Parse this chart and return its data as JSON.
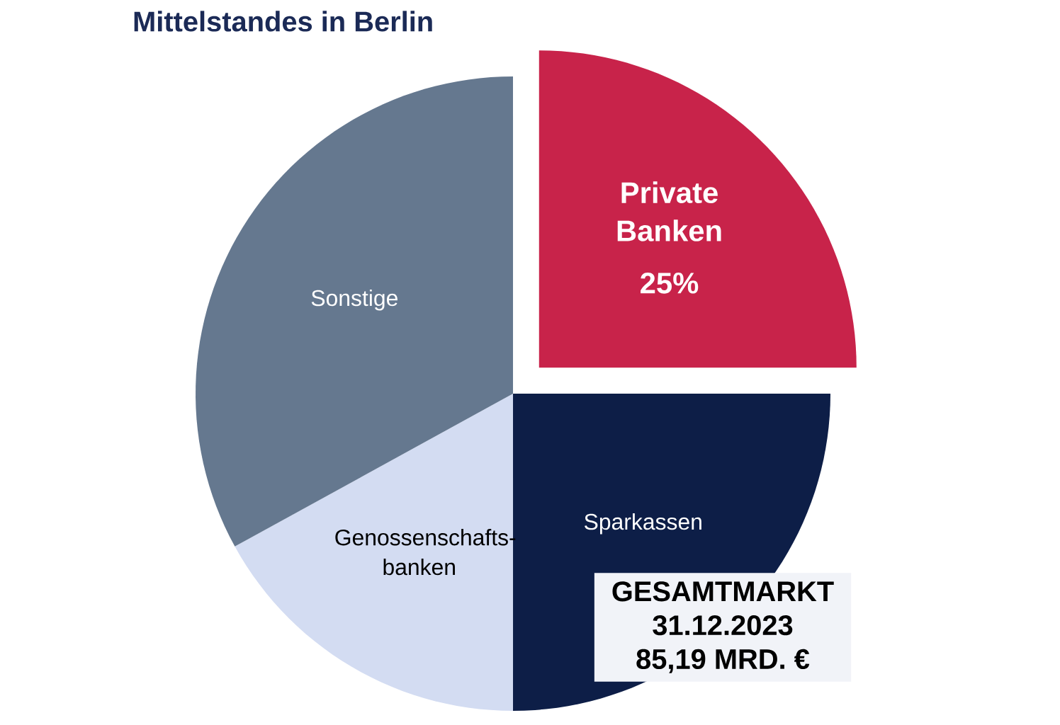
{
  "chart_data": {
    "type": "pie",
    "title": "Mittelstandes in Berlin",
    "categories": [
      "Private Banken",
      "Sparkassen",
      "Genossenschafts-banken",
      "Sonstige"
    ],
    "values": [
      25,
      25,
      17,
      33
    ],
    "colors": [
      "#c8234a",
      "#0d1e47",
      "#d3dcf2",
      "#65788f"
    ],
    "value_labels": [
      "25%",
      null,
      null,
      null
    ],
    "annotations": [
      "GESAMTMARKT",
      "31.12.2023",
      "85,19 MRD. €"
    ]
  }
}
